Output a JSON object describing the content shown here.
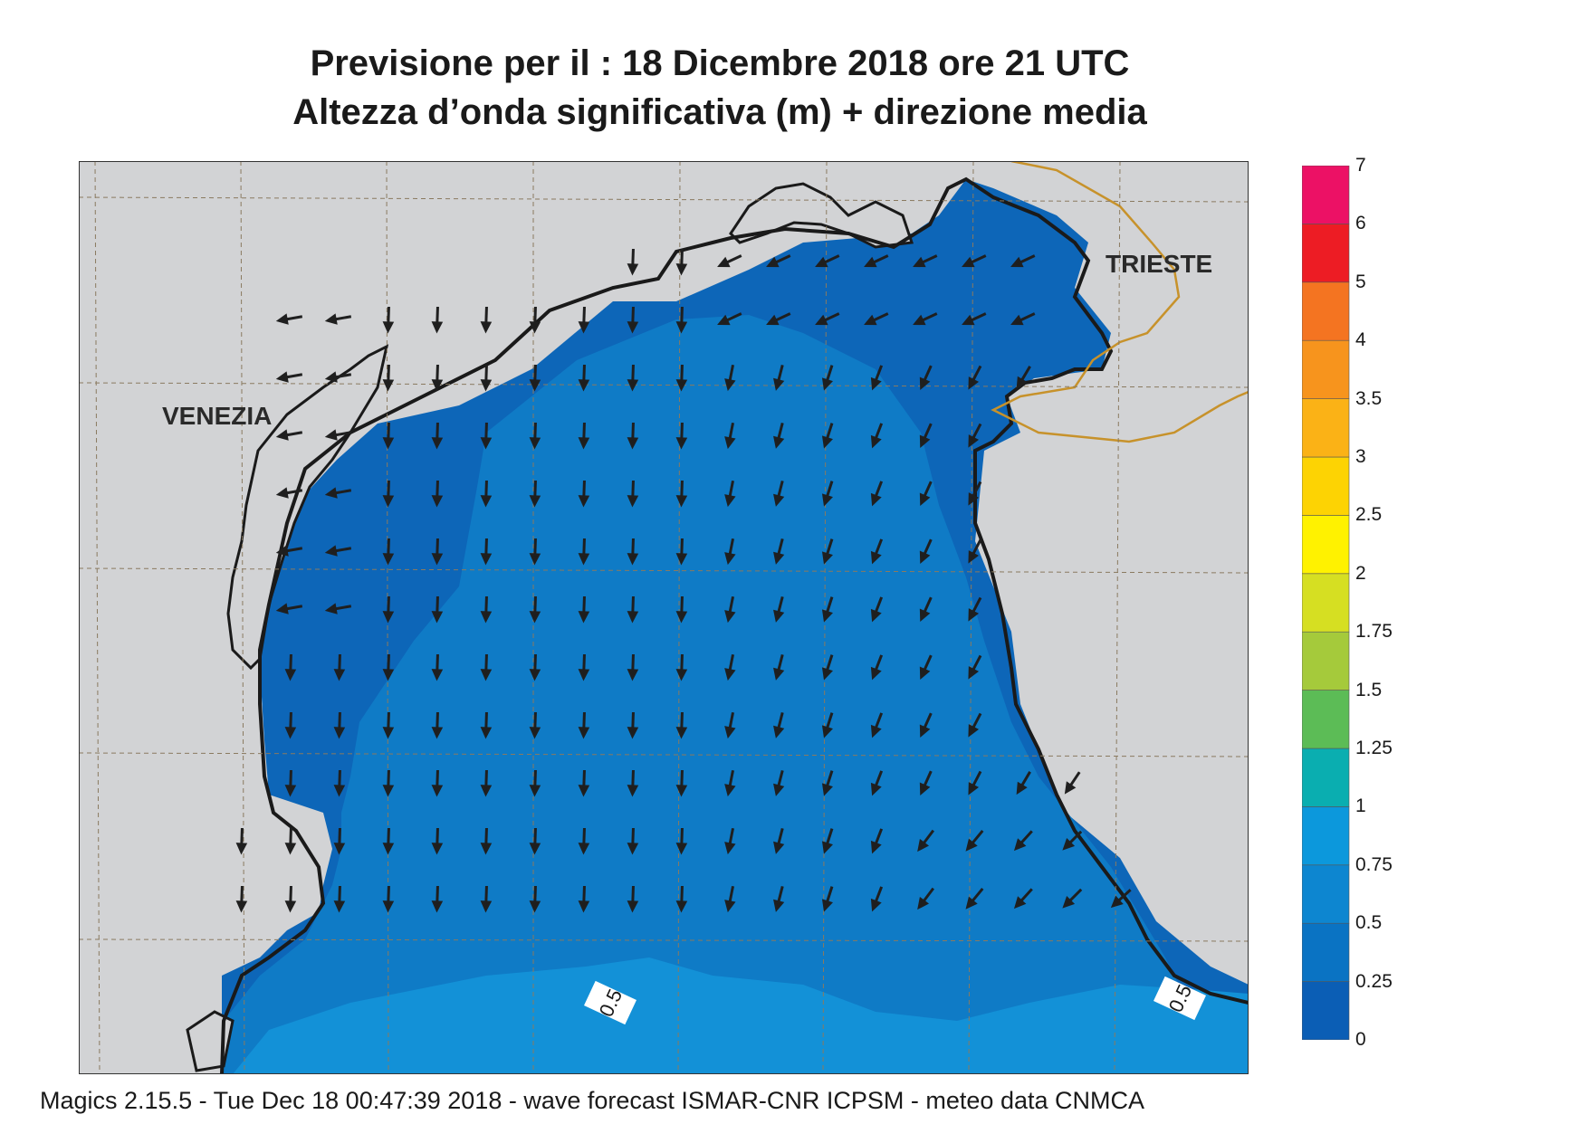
{
  "title_line1": "Previsione per il  :  18 Dicembre  2018   ore 21 UTC",
  "title_line2": "Altezza d’onda significativa (m) + direzione media",
  "cities": [
    {
      "name": "VENEZIA"
    },
    {
      "name": "TRIESTE"
    }
  ],
  "contour_labels": [
    "0.5",
    "0.5"
  ],
  "legend": [
    {
      "value": "0",
      "color": "#0b5eb5"
    },
    {
      "value": "0.25",
      "color": "#0a73c3"
    },
    {
      "value": "0.5",
      "color": "#0d86d0"
    },
    {
      "value": "0.75",
      "color": "#0c98dc"
    },
    {
      "value": "1",
      "color": "#0aaeb0"
    },
    {
      "value": "1.25",
      "color": "#5cbc56"
    },
    {
      "value": "1.5",
      "color": "#a5ca3b"
    },
    {
      "value": "1.75",
      "color": "#d6df22"
    },
    {
      "value": "2",
      "color": "#fff200"
    },
    {
      "value": "2.5",
      "color": "#fdd303"
    },
    {
      "value": "3",
      "color": "#fbb216"
    },
    {
      "value": "3.5",
      "color": "#f7941d"
    },
    {
      "value": "4",
      "color": "#f47421"
    },
    {
      "value": "5",
      "color": "#ed1c24"
    },
    {
      "value": "6",
      "color": "#ec1165"
    },
    {
      "value": "7",
      "color": ""
    }
  ],
  "colors": {
    "land": "#d2d3d5",
    "sea_low": "#0d66b8",
    "sea_mid": "#0f7bc6",
    "sea_high": "#1391d7",
    "coast": "#1a1a1a",
    "border": "#c7922b",
    "arrow": "#1f1f1f"
  },
  "footer": "Magics 2.15.5 - Tue Dec 18 00:47:39 2018 - wave forecast  ISMAR-CNR  ICPSM - meteo data   CNMCA"
}
